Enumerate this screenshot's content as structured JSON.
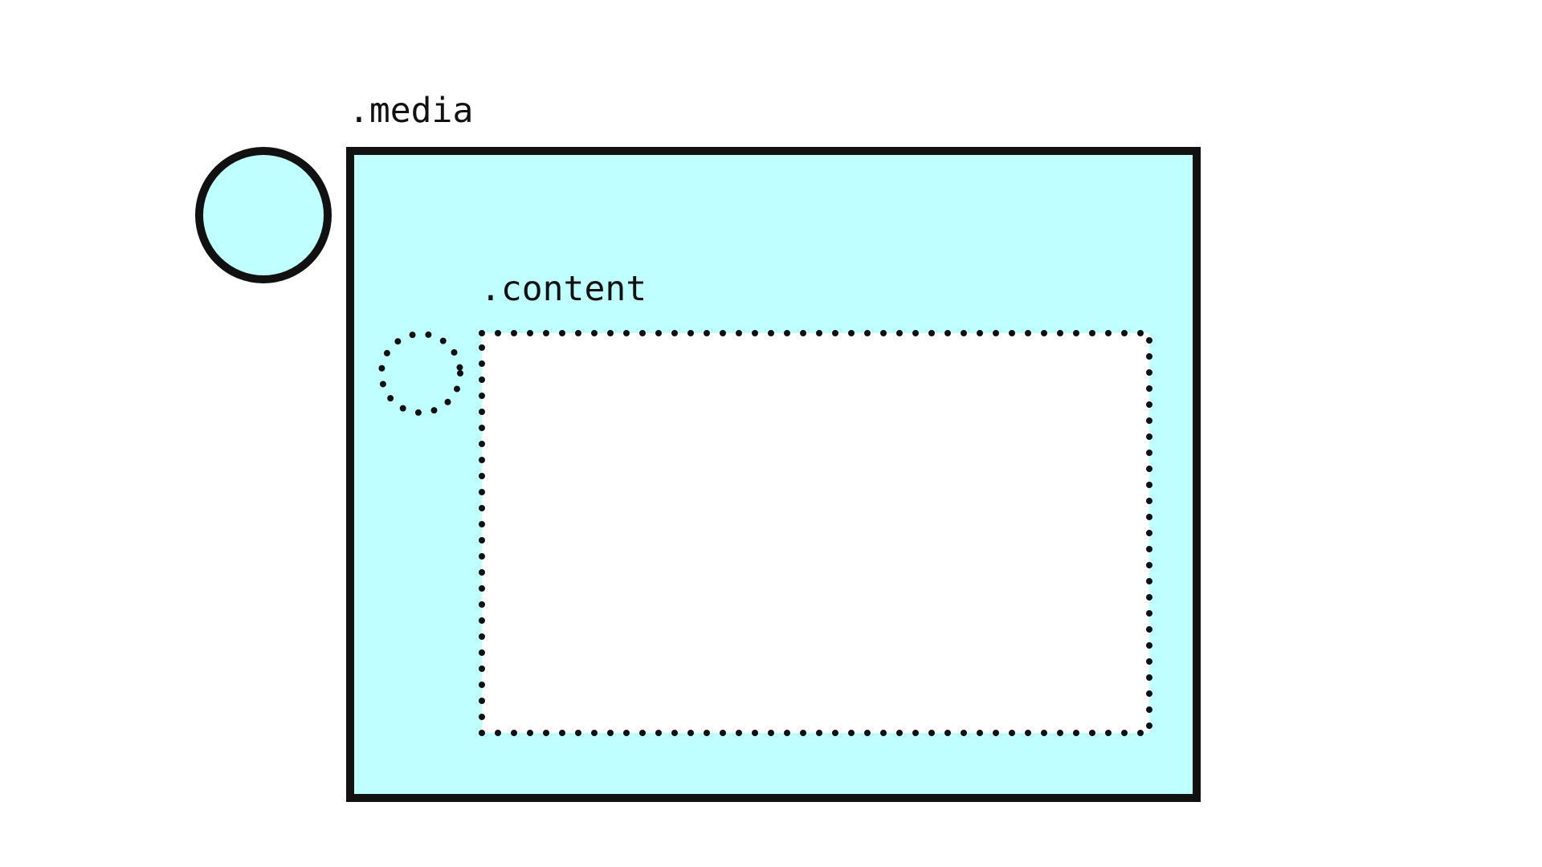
{
  "labels": {
    "media": ".media",
    "content": ".content"
  },
  "colors": {
    "fill": "#bfffff",
    "stroke": "#111111",
    "inner_fill": "#ffffff",
    "background": "#ffffff"
  },
  "icons": {
    "outer_avatar": "solid-circle",
    "inner_avatar": "dotted-circle"
  }
}
